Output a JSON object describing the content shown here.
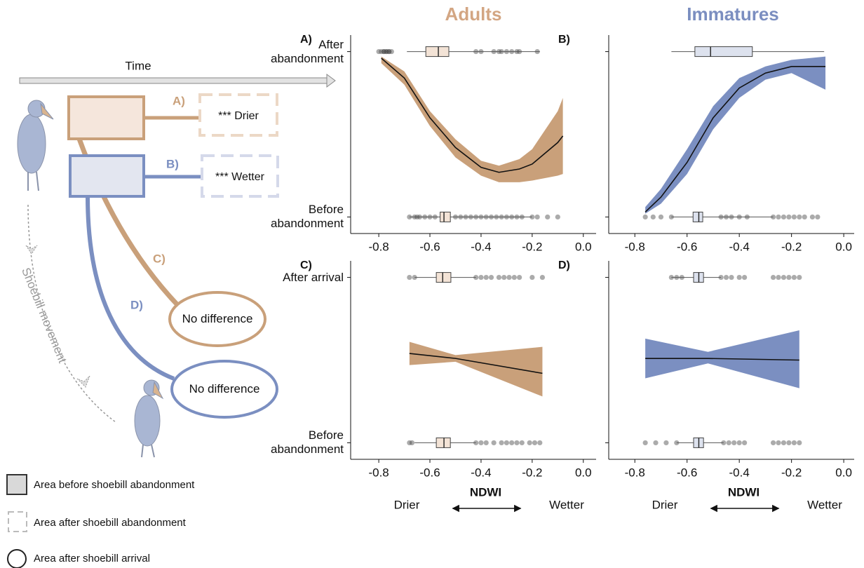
{
  "column_titles": [
    "Adults",
    "Immatures"
  ],
  "diagram": {
    "time_label": "Time",
    "movement_label": "Shoebill movement",
    "links": [
      {
        "label": "A)",
        "result": "*** Drier"
      },
      {
        "label": "B)",
        "result": "*** Wetter"
      },
      {
        "label": "C)",
        "result": "No difference"
      },
      {
        "label": "D)",
        "result": "No difference"
      }
    ]
  },
  "legend": [
    "Area before shoebill abandonment",
    "Area after shoebill abandonment",
    "Area after shoebill arrival"
  ],
  "chart_data": [
    {
      "type": "line",
      "panel_label": "A)",
      "color": "#c9a07a",
      "box_color": "#f3e3d6",
      "xlim": [
        -0.91,
        0.05
      ],
      "xticks": [
        -0.8,
        -0.6,
        -0.4,
        -0.2,
        {
          "value": 0,
          "label": "0.0"
        }
      ],
      "ylim": [
        -0.1,
        1.1
      ],
      "yticks": [
        {
          "value": 1,
          "label": "After abandonment"
        },
        {
          "value": 0,
          "label": "Before abandonment"
        }
      ],
      "x": [
        -0.79,
        -0.7,
        -0.6,
        -0.5,
        -0.4,
        -0.33,
        -0.25,
        -0.2,
        -0.1,
        -0.08
      ],
      "fit": [
        0.96,
        0.84,
        0.6,
        0.42,
        0.3,
        0.27,
        0.29,
        0.32,
        0.45,
        0.49
      ],
      "lower": [
        0.93,
        0.8,
        0.55,
        0.36,
        0.25,
        0.21,
        0.21,
        0.22,
        0.25,
        0.26
      ],
      "upper": [
        0.97,
        0.88,
        0.64,
        0.47,
        0.34,
        0.31,
        0.35,
        0.41,
        0.64,
        0.72
      ],
      "boxplots": [
        {
          "y": 1,
          "whislo": -0.69,
          "q1": -0.616,
          "med": -0.567,
          "q3": -0.526,
          "whishi": -0.17,
          "points": [
            -0.8,
            -0.79,
            -0.78,
            -0.78,
            -0.77,
            -0.77,
            -0.76,
            -0.76,
            -0.75,
            -0.42,
            -0.4,
            -0.35,
            -0.33,
            -0.32,
            -0.3,
            -0.28,
            -0.26,
            -0.25,
            -0.18
          ]
        },
        {
          "y": 0,
          "whislo": -0.68,
          "q1": -0.56,
          "med": -0.545,
          "q3": -0.52,
          "whishi": -0.2,
          "points": [
            -0.68,
            -0.66,
            -0.65,
            -0.64,
            -0.62,
            -0.6,
            -0.58,
            -0.5,
            -0.48,
            -0.46,
            -0.44,
            -0.42,
            -0.4,
            -0.38,
            -0.36,
            -0.34,
            -0.32,
            -0.3,
            -0.28,
            -0.26,
            -0.24,
            -0.2,
            -0.18,
            -0.14,
            -0.1
          ]
        }
      ]
    },
    {
      "type": "line",
      "panel_label": "B)",
      "color": "#7b8fc1",
      "box_color": "#dde2ee",
      "xlim": [
        -0.9,
        0.04
      ],
      "xticks": [
        -0.8,
        -0.6,
        -0.4,
        -0.2,
        {
          "value": 0,
          "label": "0.0"
        }
      ],
      "ylim": [
        -0.1,
        1.1
      ],
      "yticks": [
        1,
        0
      ],
      "x": [
        -0.76,
        -0.7,
        -0.6,
        -0.5,
        -0.4,
        -0.3,
        -0.2,
        -0.07
      ],
      "fit": [
        0.03,
        0.12,
        0.33,
        0.6,
        0.78,
        0.87,
        0.91,
        0.91
      ],
      "lower": [
        0.02,
        0.08,
        0.26,
        0.53,
        0.72,
        0.83,
        0.87,
        0.77
      ],
      "upper": [
        0.06,
        0.17,
        0.41,
        0.67,
        0.84,
        0.91,
        0.95,
        0.97
      ],
      "boxplots": [
        {
          "y": 1,
          "whislo": -0.66,
          "q1": -0.57,
          "med": -0.51,
          "q3": -0.35,
          "whishi": -0.075,
          "points": []
        },
        {
          "y": 0,
          "whislo": -0.66,
          "q1": -0.577,
          "med": -0.555,
          "q3": -0.54,
          "whishi": -0.27,
          "points": [
            -0.76,
            -0.73,
            -0.7,
            -0.66,
            -0.47,
            -0.45,
            -0.43,
            -0.4,
            -0.37,
            -0.27,
            -0.25,
            -0.23,
            -0.21,
            -0.19,
            -0.17,
            -0.15,
            -0.12,
            -0.1
          ]
        }
      ]
    },
    {
      "type": "line",
      "panel_label": "C)",
      "color": "#c9a07a",
      "box_color": "#f3e3d6",
      "xlim": [
        -0.91,
        0.05
      ],
      "xticks": [
        -0.8,
        -0.6,
        -0.4,
        -0.2,
        {
          "value": 0,
          "label": "0.0"
        }
      ],
      "ylim": [
        -0.1,
        1.1
      ],
      "yticks": [
        {
          "value": 1,
          "label": "After arrival"
        },
        {
          "value": 0,
          "label": "Before abandonment"
        }
      ],
      "xlabel": "NDWI",
      "annotations": [
        "Drier",
        "Wetter"
      ],
      "x": [
        -0.68,
        -0.5,
        -0.16
      ],
      "fit": [
        0.54,
        0.51,
        0.42
      ],
      "lower": [
        0.47,
        0.49,
        0.28
      ],
      "upper": [
        0.61,
        0.53,
        0.58
      ],
      "boxplots": [
        {
          "y": 1,
          "whislo": -0.66,
          "q1": -0.575,
          "med": -0.55,
          "q3": -0.518,
          "whishi": -0.42,
          "points": [
            -0.68,
            -0.66,
            -0.42,
            -0.4,
            -0.38,
            -0.36,
            -0.33,
            -0.31,
            -0.29,
            -0.27,
            -0.25,
            -0.2,
            -0.16
          ]
        },
        {
          "y": 0,
          "whislo": -0.66,
          "q1": -0.575,
          "med": -0.545,
          "q3": -0.52,
          "whishi": -0.42,
          "points": [
            -0.68,
            -0.67,
            -0.42,
            -0.4,
            -0.38,
            -0.35,
            -0.32,
            -0.3,
            -0.28,
            -0.26,
            -0.24,
            -0.21,
            -0.19,
            -0.17
          ]
        }
      ]
    },
    {
      "type": "line",
      "panel_label": "D)",
      "color": "#7b8fc1",
      "box_color": "#dde2ee",
      "xlim": [
        -0.9,
        0.04
      ],
      "xticks": [
        -0.8,
        -0.6,
        -0.4,
        -0.2,
        {
          "value": 0,
          "label": "0.0"
        }
      ],
      "ylim": [
        -0.1,
        1.1
      ],
      "yticks": [
        1,
        0
      ],
      "xlabel": "NDWI",
      "annotations": [
        "Drier",
        "Wetter"
      ],
      "x": [
        -0.76,
        -0.52,
        -0.17
      ],
      "fit": [
        0.51,
        0.51,
        0.5
      ],
      "lower": [
        0.39,
        0.48,
        0.33
      ],
      "upper": [
        0.63,
        0.55,
        0.68
      ],
      "boxplots": [
        {
          "y": 1,
          "whislo": -0.66,
          "q1": -0.575,
          "med": -0.555,
          "q3": -0.537,
          "whishi": -0.47,
          "points": [
            -0.66,
            -0.64,
            -0.62,
            -0.47,
            -0.45,
            -0.43,
            -0.4,
            -0.38,
            -0.27,
            -0.25,
            -0.23,
            -0.21,
            -0.19,
            -0.17
          ]
        },
        {
          "y": 0,
          "whislo": -0.64,
          "q1": -0.575,
          "med": -0.555,
          "q3": -0.537,
          "whishi": -0.46,
          "points": [
            -0.76,
            -0.72,
            -0.68,
            -0.64,
            -0.46,
            -0.44,
            -0.42,
            -0.4,
            -0.38,
            -0.27,
            -0.25,
            -0.23,
            -0.21,
            -0.19,
            -0.17
          ]
        }
      ]
    }
  ]
}
